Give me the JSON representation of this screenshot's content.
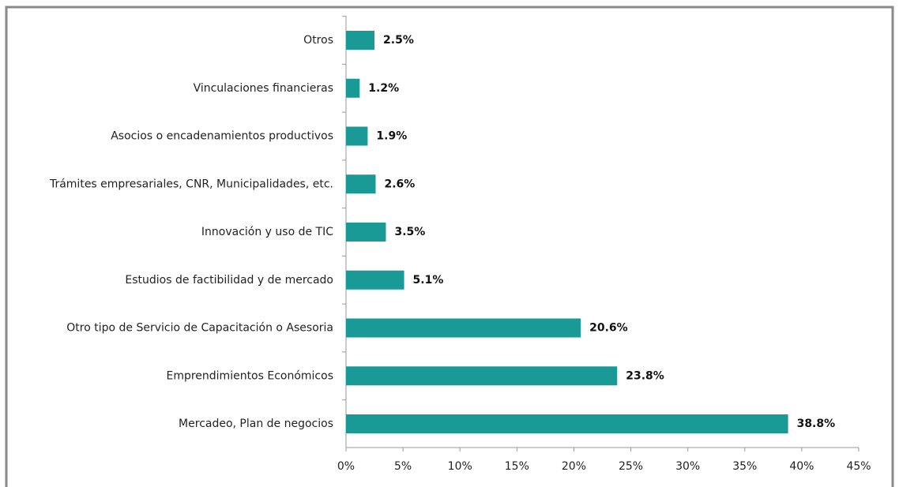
{
  "chart_data": {
    "type": "bar",
    "orientation": "horizontal",
    "categories": [
      "Otros",
      "Vinculaciones financieras",
      "Asocios o encadenamientos productivos",
      "Trámites empresariales, CNR, Municipalidades, etc.",
      "Innovación y uso de TIC",
      "Estudios de factibilidad y de mercado",
      "Otro tipo de Servicio de Capacitación o Asesoria",
      "Emprendimientos Económicos",
      "Mercadeo, Plan de negocios"
    ],
    "values": [
      2.5,
      1.2,
      1.9,
      2.6,
      3.5,
      5.1,
      20.6,
      23.8,
      38.8
    ],
    "value_labels": [
      "2.5%",
      "1.2%",
      "1.9%",
      "2.6%",
      "3.5%",
      "5.1%",
      "20.6%",
      "23.8%",
      "38.8%"
    ],
    "color": "#199a96",
    "xlim": [
      0,
      45
    ],
    "xticks": [
      {
        "value": 0,
        "label": "0%"
      },
      {
        "value": 5,
        "label": "5%"
      },
      {
        "value": 10,
        "label": "10%"
      },
      {
        "value": 15,
        "label": "15%"
      },
      {
        "value": 20,
        "label": "20%"
      },
      {
        "value": 25,
        "label": "25%"
      },
      {
        "value": 30,
        "label": "30%"
      },
      {
        "value": 35,
        "label": "35%"
      },
      {
        "value": 40,
        "label": "40%"
      },
      {
        "value": 45,
        "label": "45%"
      }
    ]
  }
}
